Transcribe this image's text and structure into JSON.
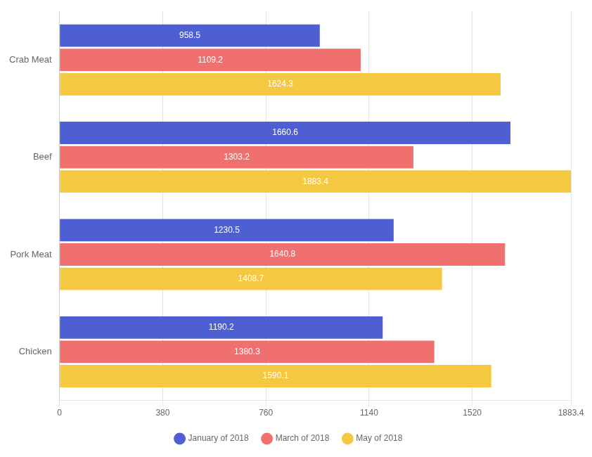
{
  "chart_data": {
    "type": "bar",
    "orientation": "horizontal",
    "categories": [
      "Chicken",
      "Pork Meat",
      "Beef",
      "Crab Meat"
    ],
    "series": [
      {
        "name": "January of 2018",
        "color": "#4E5FD4",
        "values": [
          1190.2,
          1230.5,
          1660.6,
          958.5
        ]
      },
      {
        "name": "March of 2018",
        "color": "#F07070",
        "values": [
          1380.3,
          1640.8,
          1303.2,
          1109.2
        ]
      },
      {
        "name": "May of 2018",
        "color": "#F5C842",
        "values": [
          1590.1,
          1408.7,
          1883.4,
          1624.3
        ]
      }
    ],
    "xlim": [
      0,
      1883.4
    ],
    "xticks": [
      0,
      380,
      760,
      1140,
      1520,
      1883.4
    ],
    "grid": true,
    "data_labels": true,
    "legend": "bottom"
  }
}
